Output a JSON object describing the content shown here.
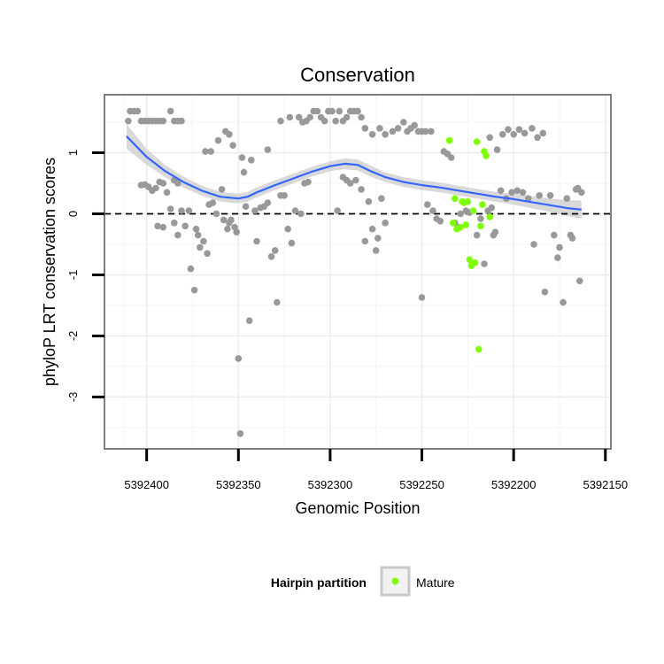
{
  "chart_data": {
    "type": "scatter",
    "title": "Conservation",
    "xlabel": "Genomic Position",
    "ylabel": "phyloP LRT conservation scores",
    "xlim": [
      5392423,
      5392147
    ],
    "ylim": [
      -3.85,
      1.95
    ],
    "x_reversed": true,
    "x_ticks": [
      5392400,
      5392350,
      5392300,
      5392250,
      5392200,
      5392150
    ],
    "x_tick_labels": [
      "5392400",
      "5392350",
      "5392300",
      "5392250",
      "5392200",
      "5392150"
    ],
    "y_ticks": [
      -3,
      -2,
      -1,
      0,
      1
    ],
    "y_tick_labels": [
      "-3",
      "-2",
      "-1",
      "0",
      "1"
    ],
    "grid": true,
    "reference_line": {
      "y": 0,
      "style": "dashed",
      "color": "#000000"
    },
    "colors": {
      "other": "#999999",
      "mature": "#7fff00",
      "smooth": "#3366ff",
      "band": "#cccccc"
    },
    "legend": {
      "title": "Hairpin partition",
      "position": "bottom",
      "entries": [
        "Mature"
      ]
    },
    "series": [
      {
        "type": "scatter",
        "group": "other",
        "points": [
          [
            5392410,
            1.52
          ],
          [
            5392409,
            1.68
          ],
          [
            5392407,
            1.68
          ],
          [
            5392405,
            1.68
          ],
          [
            5392403,
            1.52
          ],
          [
            5392401,
            1.52
          ],
          [
            5392399,
            1.52
          ],
          [
            5392397,
            1.52
          ],
          [
            5392395,
            1.52
          ],
          [
            5392393,
            1.52
          ],
          [
            5392391,
            1.52
          ],
          [
            5392387,
            1.68
          ],
          [
            5392385,
            1.52
          ],
          [
            5392383,
            1.52
          ],
          [
            5392381,
            1.52
          ],
          [
            5392403,
            0.47
          ],
          [
            5392401,
            0.48
          ],
          [
            5392399,
            0.44
          ],
          [
            5392397,
            0.38
          ],
          [
            5392395,
            0.42
          ],
          [
            5392393,
            0.52
          ],
          [
            5392391,
            0.5
          ],
          [
            5392389,
            0.35
          ],
          [
            5392385,
            0.55
          ],
          [
            5392383,
            0.5
          ],
          [
            5392394,
            -0.2
          ],
          [
            5392391,
            -0.22
          ],
          [
            5392387,
            0.08
          ],
          [
            5392385,
            -0.15
          ],
          [
            5392383,
            -0.35
          ],
          [
            5392381,
            0.05
          ],
          [
            5392379,
            -0.2
          ],
          [
            5392377,
            0.05
          ],
          [
            5392376,
            -0.9
          ],
          [
            5392374,
            -1.25
          ],
          [
            5392373,
            -0.25
          ],
          [
            5392372,
            -0.35
          ],
          [
            5392371,
            -0.55
          ],
          [
            5392369,
            -0.45
          ],
          [
            5392367,
            -0.65
          ],
          [
            5392366,
            0.15
          ],
          [
            5392364,
            0.18
          ],
          [
            5392362,
            0.0
          ],
          [
            5392359,
            0.4
          ],
          [
            5392358,
            -0.1
          ],
          [
            5392368,
            1.02
          ],
          [
            5392365,
            1.02
          ],
          [
            5392361,
            1.2
          ],
          [
            5392357,
            1.35
          ],
          [
            5392355,
            1.3
          ],
          [
            5392353,
            1.12
          ],
          [
            5392356,
            -0.25
          ],
          [
            5392355,
            -0.15
          ],
          [
            5392354,
            -0.1
          ],
          [
            5392352,
            -0.22
          ],
          [
            5392351,
            -0.3
          ],
          [
            5392350,
            -2.37
          ],
          [
            5392349,
            -3.6
          ],
          [
            5392348,
            0.92
          ],
          [
            5392347,
            0.68
          ],
          [
            5392346,
            0.12
          ],
          [
            5392344,
            -1.75
          ],
          [
            5392343,
            0.88
          ],
          [
            5392341,
            0.05
          ],
          [
            5392340,
            -0.45
          ],
          [
            5392338,
            0.1
          ],
          [
            5392336,
            0.12
          ],
          [
            5392334,
            0.18
          ],
          [
            5392332,
            -0.7
          ],
          [
            5392330,
            -0.6
          ],
          [
            5392329,
            -1.45
          ],
          [
            5392327,
            0.3
          ],
          [
            5392325,
            0.3
          ],
          [
            5392323,
            -0.25
          ],
          [
            5392321,
            -0.48
          ],
          [
            5392319,
            0.05
          ],
          [
            5392316,
            0.0
          ],
          [
            5392314,
            0.5
          ],
          [
            5392312,
            0.52
          ],
          [
            5392334,
            1.05
          ],
          [
            5392327,
            1.52
          ],
          [
            5392322,
            1.58
          ],
          [
            5392317,
            1.58
          ],
          [
            5392315,
            1.5
          ],
          [
            5392313,
            1.52
          ],
          [
            5392311,
            1.58
          ],
          [
            5392309,
            1.68
          ],
          [
            5392307,
            1.68
          ],
          [
            5392305,
            1.58
          ],
          [
            5392303,
            1.52
          ],
          [
            5392301,
            1.68
          ],
          [
            5392299,
            1.68
          ],
          [
            5392297,
            1.52
          ],
          [
            5392295,
            1.68
          ],
          [
            5392293,
            1.52
          ],
          [
            5392291,
            1.58
          ],
          [
            5392289,
            1.68
          ],
          [
            5392287,
            1.68
          ],
          [
            5392285,
            1.68
          ],
          [
            5392283,
            1.58
          ],
          [
            5392296,
            0.05
          ],
          [
            5392293,
            0.6
          ],
          [
            5392291,
            0.55
          ],
          [
            5392289,
            0.5
          ],
          [
            5392286,
            0.55
          ],
          [
            5392283,
            0.4
          ],
          [
            5392281,
            -0.45
          ],
          [
            5392279,
            0.2
          ],
          [
            5392277,
            -0.25
          ],
          [
            5392275,
            -0.6
          ],
          [
            5392274,
            -0.4
          ],
          [
            5392272,
            0.25
          ],
          [
            5392270,
            -0.15
          ],
          [
            5392281,
            1.4
          ],
          [
            5392277,
            1.3
          ],
          [
            5392273,
            1.4
          ],
          [
            5392270,
            1.3
          ],
          [
            5392266,
            1.35
          ],
          [
            5392263,
            1.4
          ],
          [
            5392260,
            1.5
          ],
          [
            5392258,
            1.35
          ],
          [
            5392256,
            1.4
          ],
          [
            5392254,
            1.45
          ],
          [
            5392252,
            1.35
          ],
          [
            5392250,
            1.35
          ],
          [
            5392248,
            1.35
          ],
          [
            5392245,
            1.35
          ],
          [
            5392250,
            -1.37
          ],
          [
            5392247,
            0.15
          ],
          [
            5392244,
            0.05
          ],
          [
            5392242,
            -0.08
          ],
          [
            5392240,
            -0.12
          ],
          [
            5392238,
            1.02
          ],
          [
            5392236,
            0.98
          ],
          [
            5392234,
            0.92
          ],
          [
            5392232,
            -0.15
          ],
          [
            5392230,
            -0.22
          ],
          [
            5392229,
            0.0
          ],
          [
            5392226,
            0.05
          ],
          [
            5392224,
            0.02
          ],
          [
            5392220,
            -0.35
          ],
          [
            5392218,
            -0.08
          ],
          [
            5392216,
            -0.82
          ],
          [
            5392214,
            0.05
          ],
          [
            5392212,
            0.1
          ],
          [
            5392211,
            -0.35
          ],
          [
            5392210,
            -0.3
          ],
          [
            5392213,
            1.25
          ],
          [
            5392209,
            1.05
          ],
          [
            5392206,
            1.3
          ],
          [
            5392203,
            1.38
          ],
          [
            5392200,
            1.3
          ],
          [
            5392197,
            1.38
          ],
          [
            5392194,
            1.32
          ],
          [
            5392190,
            1.4
          ],
          [
            5392187,
            1.25
          ],
          [
            5392184,
            1.32
          ],
          [
            5392207,
            0.38
          ],
          [
            5392204,
            0.25
          ],
          [
            5392201,
            0.35
          ],
          [
            5392198,
            0.38
          ],
          [
            5392195,
            0.35
          ],
          [
            5392192,
            0.25
          ],
          [
            5392189,
            -0.5
          ],
          [
            5392186,
            0.3
          ],
          [
            5392183,
            -1.28
          ],
          [
            5392180,
            0.3
          ],
          [
            5392178,
            -0.35
          ],
          [
            5392176,
            -0.72
          ],
          [
            5392175,
            -0.55
          ],
          [
            5392173,
            -1.45
          ],
          [
            5392171,
            0.25
          ],
          [
            5392169,
            -0.35
          ],
          [
            5392168,
            -0.4
          ],
          [
            5392166,
            0.4
          ],
          [
            5392165,
            0.42
          ],
          [
            5392164,
            -1.1
          ],
          [
            5392163,
            0.35
          ]
        ]
      },
      {
        "type": "scatter",
        "group": "mature",
        "name": "Mature",
        "points": [
          [
            5392235,
            1.2
          ],
          [
            5392233,
            -0.15
          ],
          [
            5392232,
            0.25
          ],
          [
            5392231,
            -0.25
          ],
          [
            5392229,
            -0.22
          ],
          [
            5392228,
            0.2
          ],
          [
            5392227,
            0.18
          ],
          [
            5392226,
            -0.18
          ],
          [
            5392225,
            0.2
          ],
          [
            5392224,
            -0.75
          ],
          [
            5392223,
            -0.85
          ],
          [
            5392222,
            0.05
          ],
          [
            5392221,
            -0.8
          ],
          [
            5392220,
            1.18
          ],
          [
            5392219,
            -2.22
          ],
          [
            5392218,
            -0.2
          ],
          [
            5392217,
            0.15
          ],
          [
            5392216,
            1.02
          ],
          [
            5392215,
            0.95
          ],
          [
            5392213,
            -0.05
          ]
        ]
      }
    ],
    "smooth_line": {
      "x": [
        5392411,
        5392400,
        5392390,
        5392380,
        5392370,
        5392360,
        5392350,
        5392345,
        5392340,
        5392330,
        5392320,
        5392310,
        5392300,
        5392292,
        5392285,
        5392278,
        5392270,
        5392260,
        5392250,
        5392240,
        5392230,
        5392220,
        5392210,
        5392200,
        5392190,
        5392180,
        5392170,
        5392163
      ],
      "y": [
        1.27,
        0.93,
        0.7,
        0.52,
        0.38,
        0.28,
        0.25,
        0.28,
        0.35,
        0.47,
        0.58,
        0.69,
        0.78,
        0.82,
        0.8,
        0.7,
        0.6,
        0.52,
        0.47,
        0.43,
        0.38,
        0.33,
        0.28,
        0.24,
        0.19,
        0.14,
        0.09,
        0.07
      ],
      "ci_half_width": [
        0.2,
        0.13,
        0.1,
        0.09,
        0.08,
        0.08,
        0.08,
        0.08,
        0.08,
        0.08,
        0.08,
        0.08,
        0.08,
        0.09,
        0.09,
        0.09,
        0.08,
        0.08,
        0.08,
        0.08,
        0.08,
        0.08,
        0.08,
        0.09,
        0.1,
        0.11,
        0.13,
        0.15
      ]
    }
  }
}
